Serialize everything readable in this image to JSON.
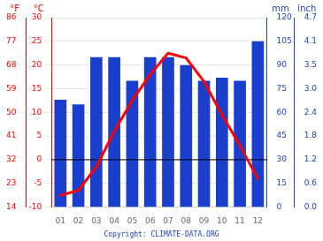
{
  "chart_data": {
    "type": "bar",
    "categories": [
      "01",
      "02",
      "03",
      "04",
      "05",
      "06",
      "07",
      "08",
      "09",
      "10",
      "11",
      "12"
    ],
    "series": [
      {
        "type": "bar",
        "color": "#1a3fcc",
        "axis": "y2",
        "values": [
          68,
          65,
          95,
          95,
          80,
          95,
          95,
          90,
          80,
          82,
          80,
          105
        ]
      },
      {
        "type": "line",
        "color": "#ff0000",
        "values": [
          -7.5,
          -6.5,
          -1.5,
          6.0,
          12.5,
          18.0,
          22.5,
          21.5,
          16.5,
          9.5,
          3.0,
          -4.0
        ]
      }
    ],
    "ylim": [
      -10,
      30
    ],
    "yticks": [
      -10,
      -5,
      0,
      5,
      10,
      15,
      20,
      25,
      30
    ],
    "ylabel": "°C",
    "y2lim": [
      0,
      120
    ],
    "y2ticks": [
      0,
      15,
      30,
      45,
      60,
      75,
      90,
      105,
      120
    ],
    "y2label": "mm",
    "y3lim": [
      -10,
      30
    ],
    "y3ticks": [
      {
        "value": -10,
        "label": "14"
      },
      {
        "value": -5,
        "label": "23"
      },
      {
        "value": 0,
        "label": "32"
      },
      {
        "value": 5,
        "label": "41"
      },
      {
        "value": 10,
        "label": "50"
      },
      {
        "value": 15,
        "label": "59"
      },
      {
        "value": 20,
        "label": "68"
      },
      {
        "value": 25,
        "label": "77"
      },
      {
        "value": 30,
        "label": "86"
      }
    ],
    "y3label": "°F",
    "y4lim": [
      0,
      120
    ],
    "y4ticks": [
      {
        "value": 0,
        "label": "0.0"
      },
      {
        "value": 15,
        "label": "0.6"
      },
      {
        "value": 30,
        "label": "1.2"
      },
      {
        "value": 45,
        "label": "1.8"
      },
      {
        "value": 60,
        "label": "2.4"
      },
      {
        "value": 75,
        "label": "3.0"
      },
      {
        "value": 90,
        "label": "3.5"
      },
      {
        "value": 105,
        "label": "4.1"
      },
      {
        "value": 120,
        "label": "4.7"
      }
    ],
    "y4label": "inch",
    "grid": true,
    "hlines": [
      {
        "y": 0,
        "color": "#000000"
      }
    ],
    "annotations": [
      "Copyright: CLIMATE-DATA.ORG"
    ]
  }
}
